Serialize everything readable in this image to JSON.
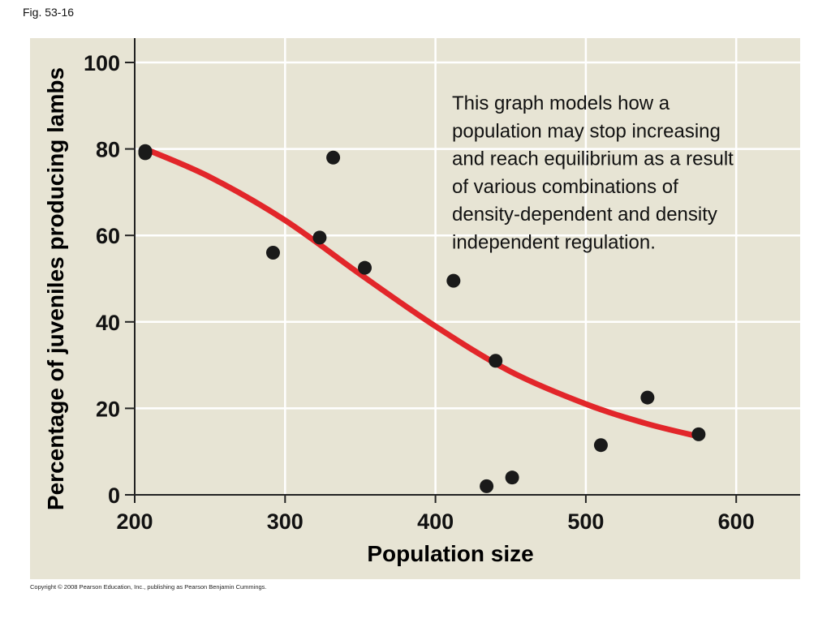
{
  "figure_label": "Fig. 53-16",
  "copyright": "Copyright © 2008 Pearson Education, Inc., publishing as Pearson Benjamin Cummings.",
  "colors": {
    "panel": "#e7e4d4",
    "grid": "#ffffff",
    "curve": "#e2262a",
    "points": "#1a1a1a",
    "axis": "#222222"
  },
  "chart_data": {
    "type": "scatter",
    "title": "",
    "xlabel": "Population size",
    "ylabel": "Percentage of juveniles producing lambs",
    "xlim": [
      200,
      645
    ],
    "ylim": [
      0,
      106
    ],
    "x_ticks": [
      200,
      300,
      400,
      500,
      600
    ],
    "y_ticks": [
      0,
      20,
      40,
      60,
      80,
      100
    ],
    "grid": true,
    "annotation": "This graph models how a population may stop increasing and reach equilibrium as a result of various combinations of density-dependent and density independent regulation.",
    "annotation_lines": [
      "This graph models how a",
      "population may stop increasing",
      "and reach equilibrium as a result",
      "of various combinations of",
      "density-dependent and density",
      "independent regulation."
    ],
    "points": [
      {
        "x": 207,
        "y": 79.5
      },
      {
        "x": 207,
        "y": 79
      },
      {
        "x": 292,
        "y": 56
      },
      {
        "x": 323,
        "y": 59.5
      },
      {
        "x": 332,
        "y": 78
      },
      {
        "x": 353,
        "y": 52.5
      },
      {
        "x": 412,
        "y": 49.5
      },
      {
        "x": 434,
        "y": 2
      },
      {
        "x": 440,
        "y": 31
      },
      {
        "x": 451,
        "y": 4
      },
      {
        "x": 510,
        "y": 11.5
      },
      {
        "x": 541,
        "y": 22.5
      },
      {
        "x": 575,
        "y": 14
      }
    ],
    "fit_curve": [
      {
        "x": 207,
        "y": 80
      },
      {
        "x": 250,
        "y": 73.5
      },
      {
        "x": 300,
        "y": 63.5
      },
      {
        "x": 350,
        "y": 51
      },
      {
        "x": 400,
        "y": 39
      },
      {
        "x": 450,
        "y": 28.5
      },
      {
        "x": 500,
        "y": 21
      },
      {
        "x": 540,
        "y": 16.5
      },
      {
        "x": 575,
        "y": 13.5
      }
    ]
  }
}
